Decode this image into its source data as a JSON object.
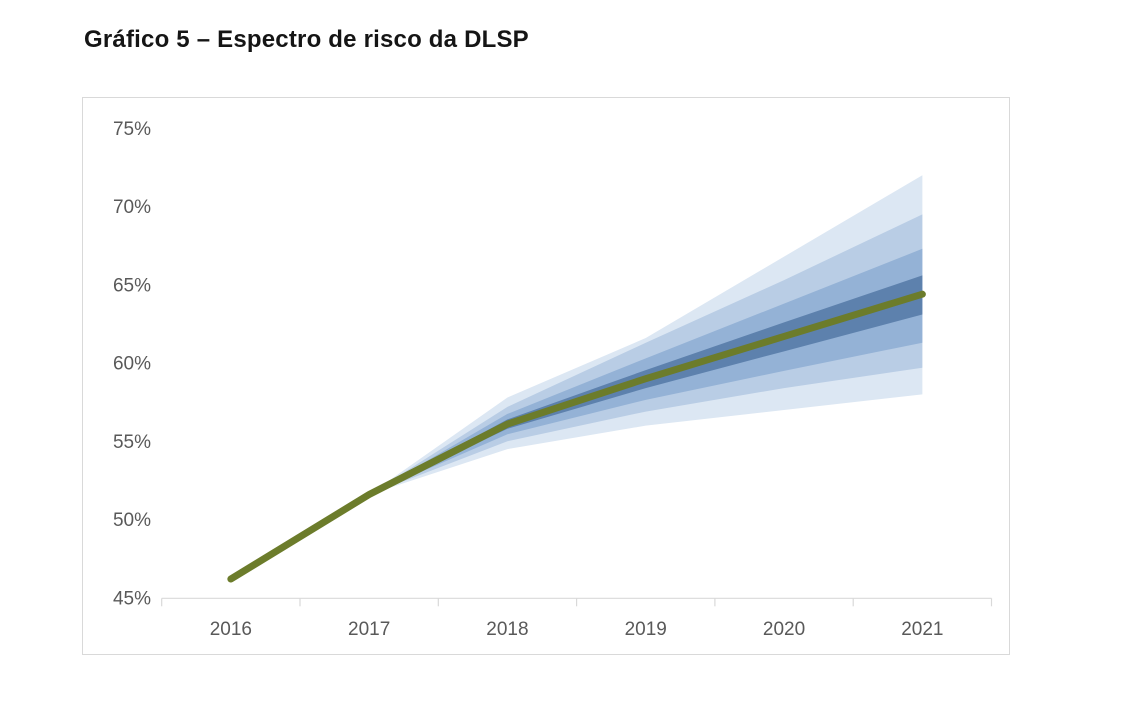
{
  "page": {
    "background": "#ffffff"
  },
  "chart_data": {
    "type": "fan-line",
    "title": "Gráfico 5 – Espectro de risco da DLSP",
    "x_categories": [
      "2016",
      "2017",
      "2018",
      "2019",
      "2020",
      "2021"
    ],
    "y_axis": {
      "min": 45,
      "max": 75,
      "ticks": [
        {
          "label": "75%",
          "value": 75
        },
        {
          "label": "70%",
          "value": 70
        },
        {
          "label": "65%",
          "value": 65
        },
        {
          "label": "60%",
          "value": 60
        },
        {
          "label": "55%",
          "value": 55
        },
        {
          "label": "50%",
          "value": 50
        },
        {
          "label": "45%",
          "value": 45
        }
      ]
    },
    "central_series": {
      "name": "central-projection",
      "values": [
        46.2,
        51.6,
        56.1,
        59.0,
        61.7,
        64.4
      ],
      "color": "#6c7c2b"
    },
    "band_start_index": 1,
    "bands": [
      {
        "name": "outer-band",
        "color": "#dce7f3",
        "lower": [
          51.6,
          54.5,
          56.0,
          57.0,
          58.0
        ],
        "upper": [
          51.6,
          57.8,
          61.6,
          66.8,
          72.0
        ]
      },
      {
        "name": "middle-outer-band",
        "color": "#b9cde5",
        "lower": [
          51.6,
          55.0,
          56.9,
          58.4,
          59.7
        ],
        "upper": [
          51.6,
          57.2,
          61.3,
          65.3,
          69.5
        ]
      },
      {
        "name": "middle-inner-band",
        "color": "#94b2d6",
        "lower": [
          51.6,
          55.45,
          57.65,
          59.5,
          61.3
        ],
        "upper": [
          51.6,
          56.75,
          60.3,
          63.8,
          67.3
        ]
      },
      {
        "name": "inner-band",
        "color": "#5d81ad",
        "lower": [
          51.6,
          55.8,
          58.4,
          60.75,
          63.1
        ],
        "upper": [
          51.6,
          56.4,
          59.55,
          62.6,
          65.6
        ]
      }
    ],
    "grid": "off",
    "legend": "none",
    "colors": {
      "frame": "#d9d9d9",
      "axis": "#d9d9d9",
      "tick_text": "#595959",
      "title_text": "#151515",
      "line": "#6c7c2b"
    }
  }
}
